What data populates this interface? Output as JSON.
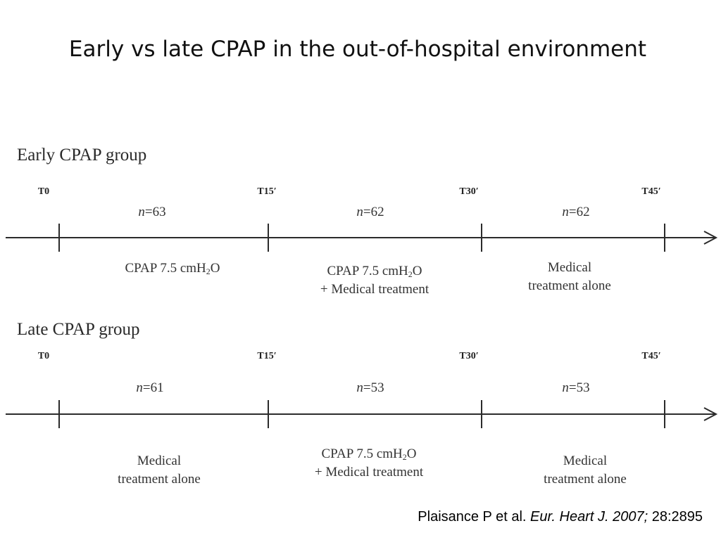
{
  "title": "Early vs late CPAP in the out-of-hospital environment",
  "groups": {
    "early": {
      "title": "Early CPAP group",
      "timepoints": [
        "T0",
        "T15′",
        "T30′",
        "T45′"
      ],
      "n_prefix": "n",
      "n_values": [
        "=63",
        "=62",
        "=62"
      ],
      "phases": {
        "p1": {
          "line1_pre": "CPAP 7.5 cmH",
          "line1_sub": "2",
          "line1_post": "O",
          "line2": ""
        },
        "p2": {
          "line1_pre": "CPAP 7.5 cmH",
          "line1_sub": "2",
          "line1_post": "O",
          "line2": "+ Medical treatment"
        },
        "p3": {
          "line1": "Medical",
          "line2": "treatment alone"
        }
      }
    },
    "late": {
      "title": "Late CPAP group",
      "timepoints": [
        "T0",
        "T15′",
        "T30′",
        "T45′"
      ],
      "n_prefix": "n",
      "n_values": [
        "=61",
        "=53",
        "=53"
      ],
      "phases": {
        "p1": {
          "line1": "Medical",
          "line2": "treatment alone"
        },
        "p2": {
          "line1_pre": "CPAP 7.5 cmH",
          "line1_sub": "2",
          "line1_post": "O",
          "line2": "+ Medical treatment"
        },
        "p3": {
          "line1": "Medical",
          "line2": "treatment alone"
        }
      }
    }
  },
  "citation": {
    "authors": "Plaisance P et al.",
    "journal": "Eur. Heart J. 2007;",
    "ref": "28:2895"
  }
}
